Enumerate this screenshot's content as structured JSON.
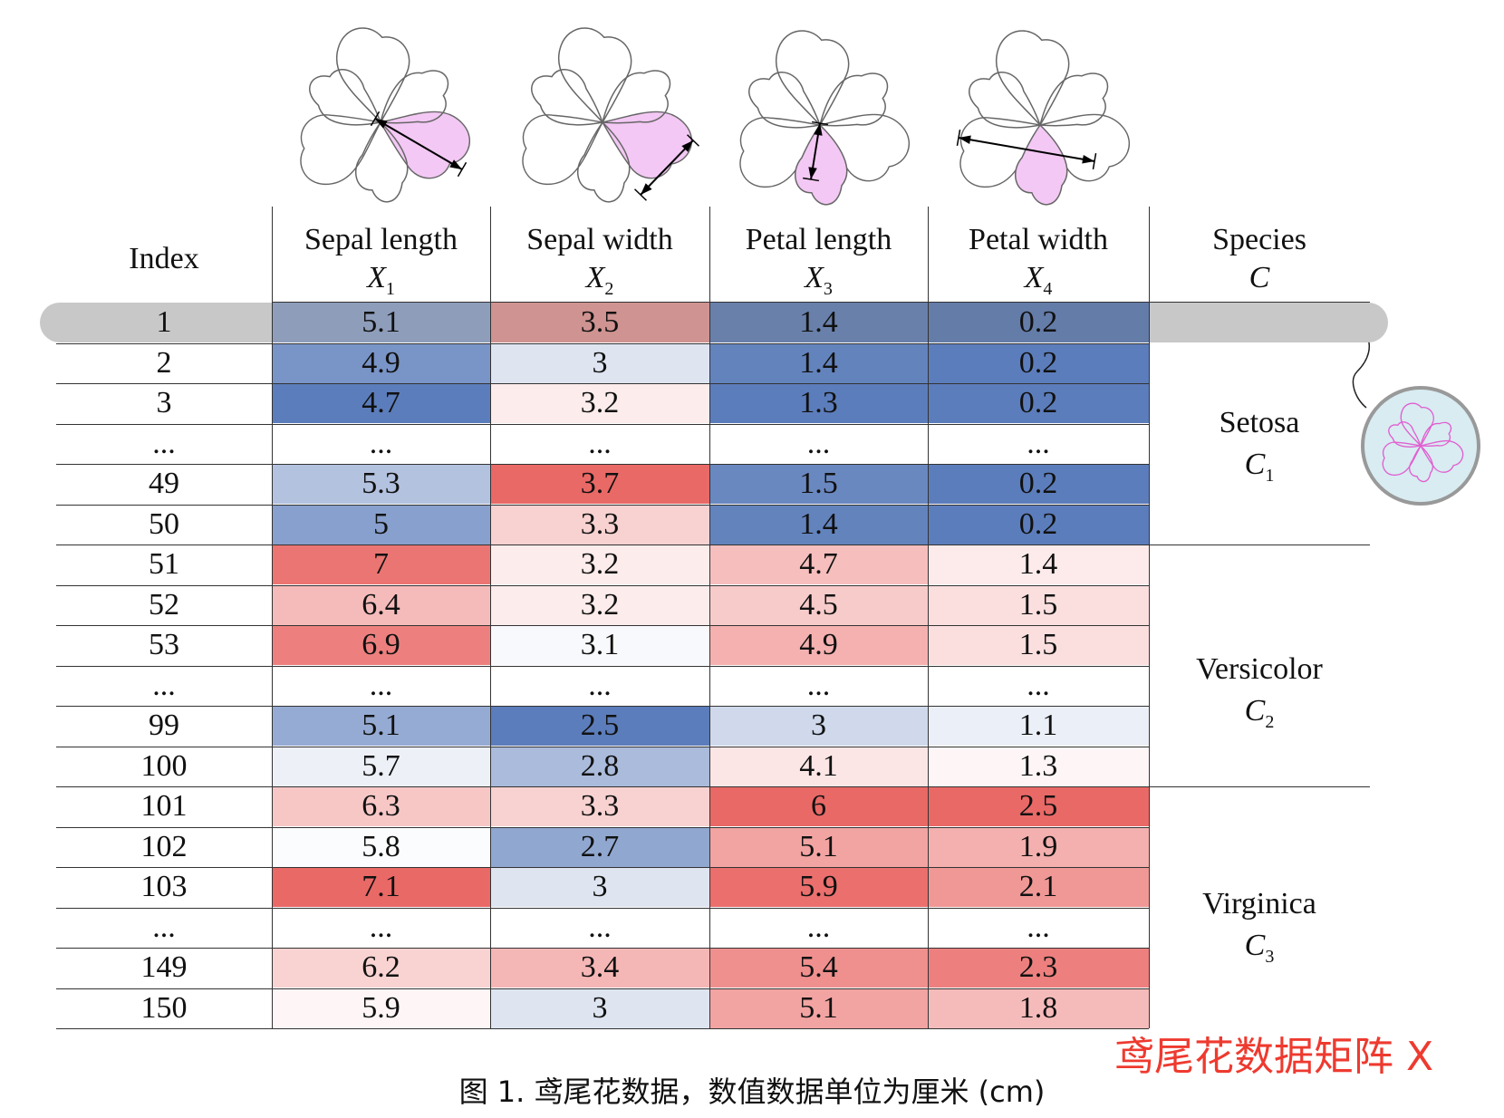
{
  "columns": [
    {
      "name": "Sepal length",
      "symbol": "X",
      "sub": "1"
    },
    {
      "name": "Sepal width",
      "symbol": "X",
      "sub": "2"
    },
    {
      "name": "Petal length",
      "symbol": "X",
      "sub": "3"
    },
    {
      "name": "Petal width",
      "symbol": "X",
      "sub": "4"
    }
  ],
  "index_header": "Index",
  "species_header": {
    "name": "Species",
    "symbol": "C"
  },
  "rows": [
    {
      "index": "1",
      "values": [
        "5.1",
        "3.5",
        "1.4",
        "0.2"
      ]
    },
    {
      "index": "2",
      "values": [
        "4.9",
        "3",
        "1.4",
        "0.2"
      ]
    },
    {
      "index": "3",
      "values": [
        "4.7",
        "3.2",
        "1.3",
        "0.2"
      ]
    },
    {
      "index": "...",
      "values": [
        "...",
        "...",
        "...",
        "..."
      ]
    },
    {
      "index": "49",
      "values": [
        "5.3",
        "3.7",
        "1.5",
        "0.2"
      ]
    },
    {
      "index": "50",
      "values": [
        "5",
        "3.3",
        "1.4",
        "0.2"
      ]
    },
    {
      "index": "51",
      "values": [
        "7",
        "3.2",
        "4.7",
        "1.4"
      ]
    },
    {
      "index": "52",
      "values": [
        "6.4",
        "3.2",
        "4.5",
        "1.5"
      ]
    },
    {
      "index": "53",
      "values": [
        "6.9",
        "3.1",
        "4.9",
        "1.5"
      ]
    },
    {
      "index": "...",
      "values": [
        "...",
        "...",
        "...",
        "..."
      ]
    },
    {
      "index": "99",
      "values": [
        "5.1",
        "2.5",
        "3",
        "1.1"
      ]
    },
    {
      "index": "100",
      "values": [
        "5.7",
        "2.8",
        "4.1",
        "1.3"
      ]
    },
    {
      "index": "101",
      "values": [
        "6.3",
        "3.3",
        "6",
        "2.5"
      ]
    },
    {
      "index": "102",
      "values": [
        "5.8",
        "2.7",
        "5.1",
        "1.9"
      ]
    },
    {
      "index": "103",
      "values": [
        "7.1",
        "3",
        "5.9",
        "2.1"
      ]
    },
    {
      "index": "...",
      "values": [
        "...",
        "...",
        "...",
        "..."
      ]
    },
    {
      "index": "149",
      "values": [
        "6.2",
        "3.4",
        "5.4",
        "2.3"
      ]
    },
    {
      "index": "150",
      "values": [
        "5.9",
        "3",
        "5.1",
        "1.8"
      ]
    }
  ],
  "species": [
    {
      "name": "Setosa",
      "symbol": "C",
      "sub": "1"
    },
    {
      "name": "Versicolor",
      "symbol": "C",
      "sub": "2"
    },
    {
      "name": "Virginica",
      "symbol": "C",
      "sub": "3"
    }
  ],
  "colors": {
    "high": "#e8615e",
    "mid": "#ffffff",
    "low": "#4a6fb3",
    "highlight": "#c8c8c8",
    "petal": "#f3c8f4",
    "flower_stroke": "#666666",
    "magnifier_fill": "#d8ecf2",
    "magnifier_flower": "#e060d0",
    "title_red": "#ee3a2f"
  },
  "title_red": "鸢尾花数据矩阵 X",
  "caption": "图 1. 鸢尾花数据，数值数据单位为厘米 (cm)",
  "icons": [
    "sepal-length-flower-icon",
    "sepal-width-flower-icon",
    "petal-length-flower-icon",
    "petal-width-flower-icon",
    "magnifier-flower-icon"
  ]
}
